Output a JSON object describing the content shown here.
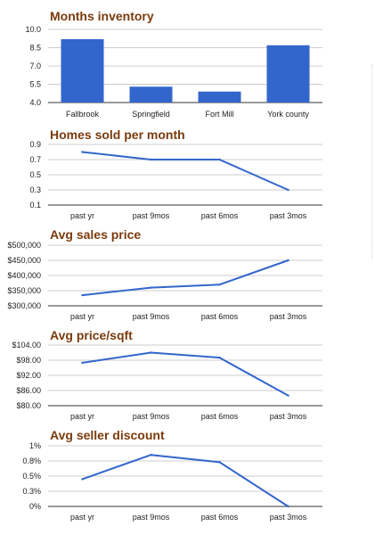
{
  "colors": {
    "series": "#3366cc",
    "title": "#7a3b0c",
    "grid": "#cccccc"
  },
  "chart_data": [
    {
      "type": "bar",
      "title": "Months inventory",
      "categories": [
        "Fallbrook",
        "Springfield",
        "Fort Mill",
        "York county"
      ],
      "values": [
        9.2,
        5.3,
        4.9,
        8.7
      ],
      "ylim": [
        4.0,
        10.0
      ],
      "yticks": [
        "10.0",
        "8.5",
        "7.0",
        "5.5",
        "4.0"
      ],
      "grid": true,
      "legend": "none"
    },
    {
      "type": "line",
      "title": "Homes sold per month",
      "categories": [
        "past yr",
        "past 9mos",
        "past 6mos",
        "past 3mos"
      ],
      "values": [
        0.8,
        0.7,
        0.7,
        0.3
      ],
      "ylim": [
        0.1,
        0.9
      ],
      "yticks": [
        "0.9",
        "0.7",
        "0.5",
        "0.3",
        "0.1"
      ],
      "grid": true,
      "legend": "none"
    },
    {
      "type": "line",
      "title": "Avg sales price",
      "categories": [
        "past yr",
        "past 9mos",
        "past 6mos",
        "past 3mos"
      ],
      "values": [
        335000,
        360000,
        370000,
        450000
      ],
      "ylim": [
        300000,
        500000
      ],
      "yticks": [
        "$500,000",
        "$450,000",
        "$400,000",
        "$350,000",
        "$300,000"
      ],
      "grid": true,
      "legend": "none"
    },
    {
      "type": "line",
      "title": "Avg price/sqft",
      "categories": [
        "past yr",
        "past 9mos",
        "past 6mos",
        "past 3mos"
      ],
      "values": [
        97,
        101,
        99,
        84
      ],
      "ylim": [
        80,
        104
      ],
      "yticks": [
        "$104.00",
        "$98.00",
        "$92.00",
        "$86.00",
        "$80.00"
      ],
      "grid": true,
      "legend": "none"
    },
    {
      "type": "line",
      "title": "Avg seller discount",
      "categories": [
        "past yr",
        "past 9mos",
        "past 6mos",
        "past 3mos"
      ],
      "values": [
        0.45,
        0.85,
        0.73,
        0.0
      ],
      "ylim": [
        0,
        1.0
      ],
      "yticks": [
        "1%",
        "0.8%",
        "0.5%",
        "0.3%",
        "0%"
      ],
      "grid": true,
      "legend": "none"
    }
  ]
}
